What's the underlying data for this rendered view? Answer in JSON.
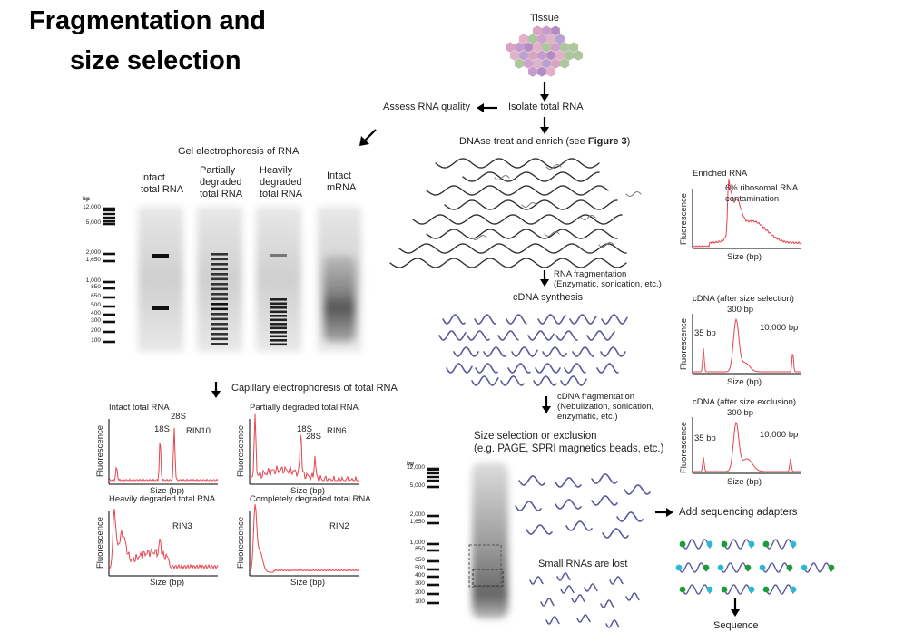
{
  "title": {
    "line1": "Fragmentation and",
    "line2": "size selection"
  },
  "top": {
    "tissue": "Tissue",
    "isolate": "Isolate total RNA",
    "assess": "Assess RNA quality",
    "dnase_prefix": "DNAse treat and enrich (see ",
    "dnase_bold": "Figure 3",
    "dnase_suffix": ")"
  },
  "gel": {
    "title": "Gel electrophoresis of RNA",
    "lanes": [
      {
        "line1": "Intact",
        "line2": "total RNA",
        "line3": ""
      },
      {
        "line1": "Partially",
        "line2": "degraded",
        "line3": "total RNA"
      },
      {
        "line1": "Heavily",
        "line2": "degraded",
        "line3": "total RNA"
      },
      {
        "line1": "Intact",
        "line2": "mRNA",
        "line3": ""
      }
    ],
    "ladder_unit": "bp",
    "ladder": [
      "12,000",
      "5,000",
      "2,000",
      "1,650",
      "1,000",
      "850",
      "650",
      "500",
      "400",
      "300",
      "200",
      "100"
    ]
  },
  "capillary": {
    "title": "Capillary electrophoresis of total RNA",
    "xlabel": "Size (bp)",
    "ylabel": "Fluorescence",
    "panels": [
      {
        "title": "Intact total RNA",
        "rin": "RIN10",
        "peak1": "18S",
        "peak2": "28S"
      },
      {
        "title": "Partially degraded total RNA",
        "rin": "RIN6",
        "peak1": "18S",
        "peak2": "28S"
      },
      {
        "title": "Heavily degraded total RNA",
        "rin": "RIN3"
      },
      {
        "title": "Completely degraded total RNA",
        "rin": "RIN2"
      }
    ]
  },
  "middle": {
    "frag_line1": "RNA fragmentation",
    "frag_line2": "(Enzymatic, sonication, etc.)",
    "cdna": "cDNA synthesis",
    "cdna_frag_line1": "cDNA fragmentation",
    "cdna_frag_line2": "(Nebulization, sonication,",
    "cdna_frag_line3": "enzymatic, etc.)",
    "size_sel_line1": "Size selection or exclusion",
    "size_sel_line2": "(e.g. PAGE, SPRI magnetics beads, etc.)",
    "small_lost": "Small RNAs are lost",
    "adapters": "Add sequencing adapters",
    "sequence": "Sequence"
  },
  "right_charts": {
    "xlabel": "Size (bp)",
    "ylabel": "Fluorescence",
    "enriched": {
      "title": "Enriched RNA",
      "note_line1": "6% ribosomal RNA",
      "note_line2": "contamination"
    },
    "size_selection": {
      "title": "cDNA (after size selection)",
      "p1": "35 bp",
      "p2": "300 bp",
      "p3": "10,000 bp"
    },
    "size_exclusion": {
      "title": "cDNA (after size exclusion)",
      "p1": "35 bp",
      "p2": "300 bp",
      "p3": "10,000 bp"
    }
  },
  "bottom_gel": {
    "ladder_unit": "bp",
    "ladder": [
      "12,000",
      "5,000",
      "2,000",
      "1,650",
      "1,000",
      "850",
      "650",
      "500",
      "400",
      "300",
      "200",
      "100"
    ]
  },
  "colors": {
    "trace": "#e8434e",
    "wave": "#5a5a9a",
    "wave_dark": "#333333",
    "adapter_green": "#1a9c3a",
    "adapter_cyan": "#2ab8d8"
  }
}
